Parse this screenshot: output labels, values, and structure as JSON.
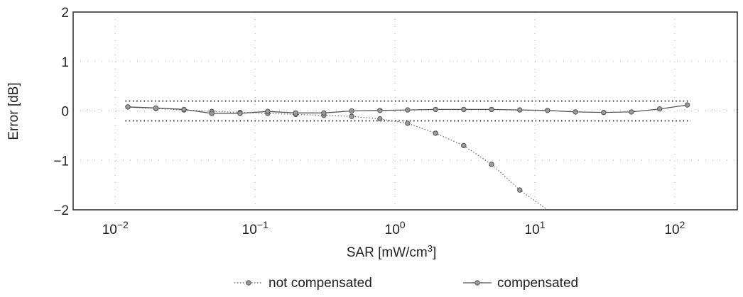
{
  "chart_data": {
    "type": "line",
    "xlabel": "SAR [mW/cm",
    "xlabel_sup": "3",
    "xlabel_end": "]",
    "ylabel": "Error [dB]",
    "xscale": "log",
    "xlim": [
      0.005,
      280
    ],
    "ylim": [
      -2,
      2
    ],
    "grid": true,
    "x_ticks": [
      0.01,
      0.1,
      1,
      10,
      100
    ],
    "x_tick_labels": [
      {
        "base": "10",
        "exp": "−2"
      },
      {
        "base": "10",
        "exp": "−1"
      },
      {
        "base": "10",
        "exp": "0"
      },
      {
        "base": "10",
        "exp": "1"
      },
      {
        "base": "10",
        "exp": "2"
      }
    ],
    "y_ticks": [
      -2,
      -1,
      0,
      1,
      2
    ],
    "y_tick_labels": [
      "−2",
      "−1",
      "0",
      "1",
      "2"
    ],
    "legend_position": "bottom",
    "tolerance_band": {
      "upper": 0.2,
      "lower": -0.2,
      "style": "dotted"
    },
    "series": [
      {
        "name": "not compensated",
        "marker": "circle",
        "line": "dotted",
        "x": [
          0.0123,
          0.0195,
          0.031,
          0.049,
          0.078,
          0.123,
          0.195,
          0.31,
          0.49,
          0.78,
          1.23,
          1.95,
          3.1,
          4.9,
          7.8,
          12.3
        ],
        "y": [
          0.08,
          0.05,
          0.02,
          -0.01,
          -0.03,
          -0.05,
          -0.07,
          -0.09,
          -0.11,
          -0.16,
          -0.25,
          -0.45,
          -0.7,
          -1.08,
          -1.6,
          -2.05
        ]
      },
      {
        "name": "compensated",
        "marker": "circle",
        "line": "solid",
        "x": [
          0.0123,
          0.0195,
          0.031,
          0.049,
          0.078,
          0.123,
          0.195,
          0.31,
          0.49,
          0.78,
          1.23,
          1.95,
          3.1,
          4.9,
          7.8,
          12.3,
          19.5,
          31,
          49,
          78,
          123
        ],
        "y": [
          0.08,
          0.06,
          0.03,
          -0.05,
          -0.05,
          -0.01,
          -0.04,
          -0.04,
          0.0,
          0.01,
          0.02,
          0.03,
          0.03,
          0.03,
          0.02,
          0.01,
          -0.02,
          -0.03,
          -0.02,
          0.04,
          0.12
        ]
      }
    ]
  }
}
